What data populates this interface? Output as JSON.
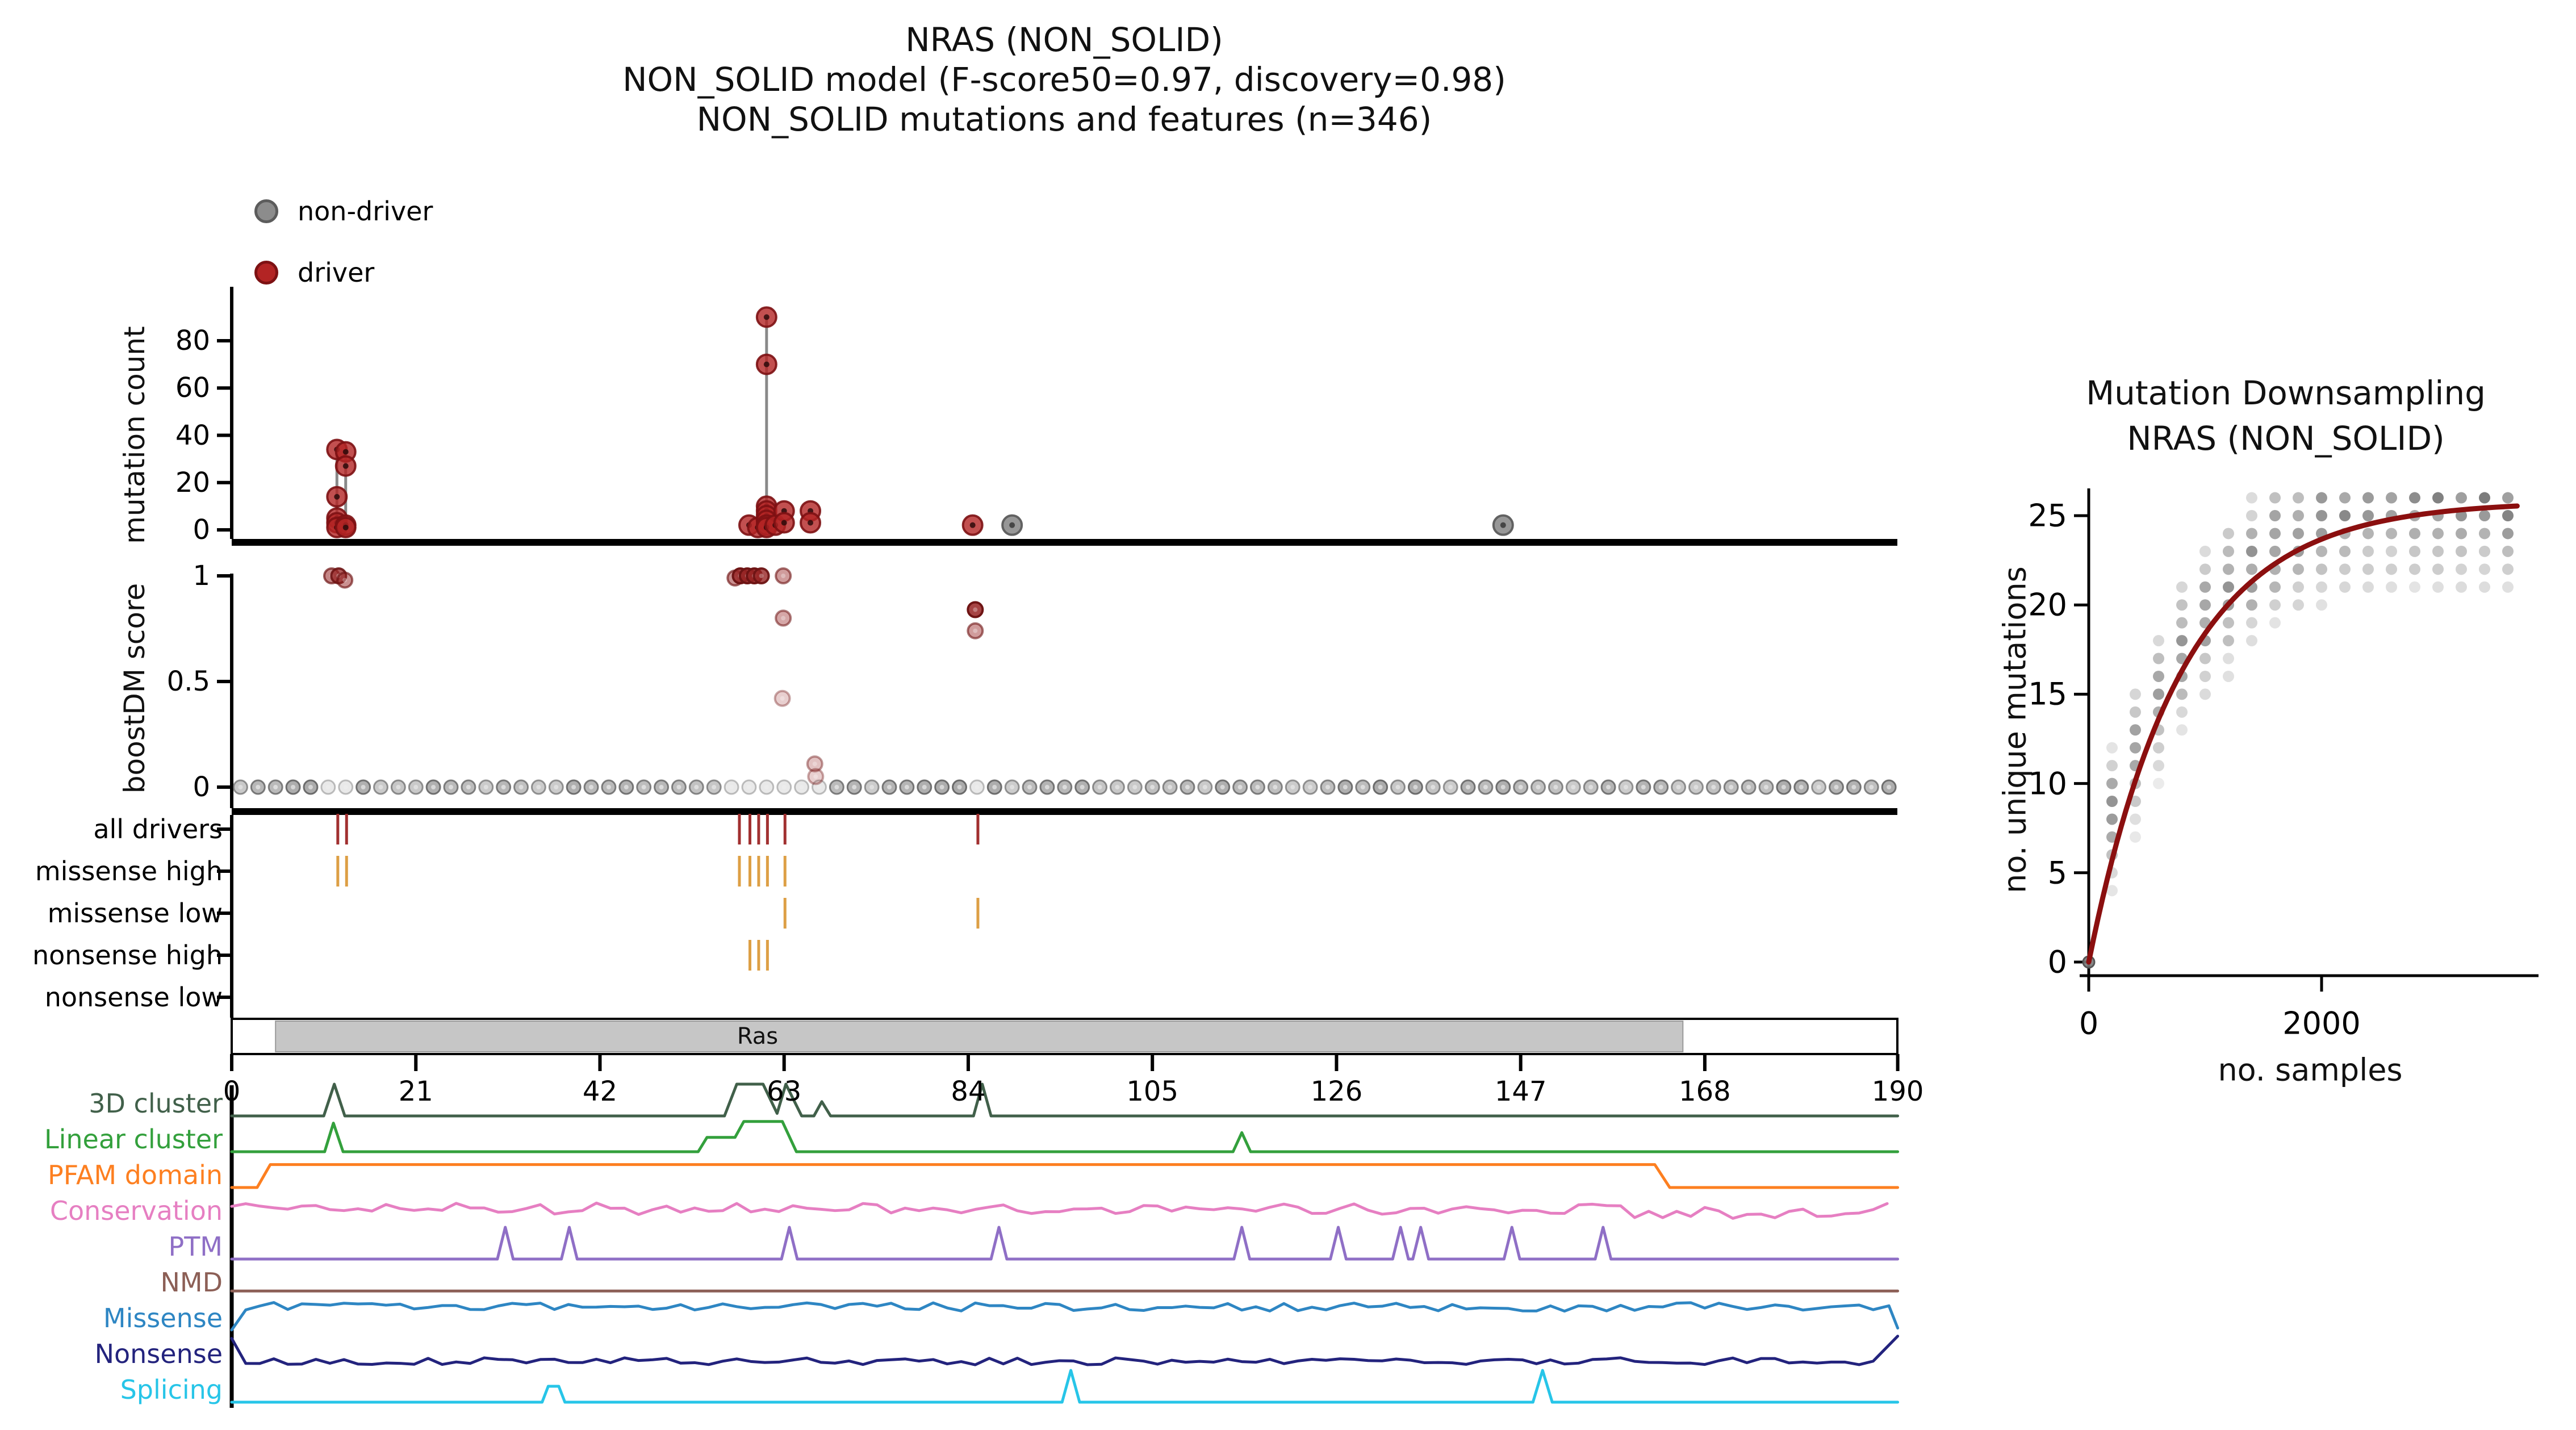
{
  "title": {
    "line1": "NRAS (NON_SOLID)",
    "line2": "NON_SOLID model (F-score50=0.97, discovery=0.98)",
    "line3": "NON_SOLID mutations and features (n=346)"
  },
  "legend": {
    "items": [
      {
        "label": "non-driver",
        "color": "#8c8c8c",
        "edge": "#5c5c5c"
      },
      {
        "label": "driver",
        "color": "#b32424",
        "edge": "#7d1113"
      }
    ]
  },
  "chart_data": {
    "needle_plot": {
      "type": "scatter",
      "ylabel": "mutation count",
      "yticks": [
        0,
        20,
        40,
        60,
        80
      ],
      "ylim": [
        0,
        95
      ],
      "xlim": [
        0,
        190
      ],
      "driver_color": "#b32424",
      "non_driver_color": "#8c8c8c",
      "stems": [
        [
          12,
          34
        ],
        [
          13,
          33
        ],
        [
          61,
          90
        ]
      ],
      "driver_points": [
        [
          12,
          34
        ],
        [
          12,
          14
        ],
        [
          12,
          5
        ],
        [
          12,
          3
        ],
        [
          12,
          1
        ],
        [
          13,
          33
        ],
        [
          13,
          27
        ],
        [
          13,
          2
        ],
        [
          13,
          1
        ],
        [
          59,
          2
        ],
        [
          60,
          1
        ],
        [
          61,
          90
        ],
        [
          61,
          70
        ],
        [
          61,
          10
        ],
        [
          61,
          8
        ],
        [
          61,
          6
        ],
        [
          61,
          4
        ],
        [
          61,
          2
        ],
        [
          61,
          1
        ],
        [
          62,
          2
        ],
        [
          63,
          8
        ],
        [
          63,
          3
        ],
        [
          66,
          8
        ],
        [
          66,
          3
        ],
        [
          84.5,
          2
        ]
      ],
      "non_driver_points": [
        [
          89,
          2
        ],
        [
          145,
          2
        ]
      ]
    },
    "boostdm_panel": {
      "ylabel": "boostDM score",
      "yticks": [
        0,
        0.5,
        1
      ],
      "driver_points": [
        [
          11.4,
          1.0,
          0.55
        ],
        [
          12.2,
          1.0,
          0.75
        ],
        [
          12.9,
          0.98,
          0.5
        ],
        [
          57.4,
          0.99,
          0.5
        ],
        [
          58.0,
          1.0,
          0.85
        ],
        [
          58.8,
          1.0,
          0.9
        ],
        [
          59.6,
          1.0,
          0.9
        ],
        [
          60.4,
          1.0,
          0.8
        ],
        [
          62.9,
          1.0,
          0.45
        ],
        [
          62.9,
          0.8,
          0.4
        ],
        [
          62.8,
          0.42,
          0.22
        ],
        [
          66.5,
          0.11,
          0.28
        ],
        [
          66.6,
          0.05,
          0.22
        ],
        [
          84.8,
          0.84,
          0.85
        ],
        [
          84.8,
          0.74,
          0.45
        ]
      ],
      "zero_row": {
        "start": 1,
        "end": 190,
        "step": 2,
        "base_alpha": 0.5,
        "light_ranges": [
          [
            11,
            13.5
          ],
          [
            57,
            61.5
          ],
          [
            63,
            67
          ],
          [
            84,
            86.5
          ]
        ],
        "light_alpha": 0.16
      }
    },
    "classification_rows": {
      "rows": [
        {
          "label": "all drivers",
          "color": "#a13030",
          "ticks": [
            12.1,
            13.1,
            57.9,
            59.1,
            60.1,
            61.1,
            63.1,
            85.1
          ]
        },
        {
          "label": "missense high",
          "color": "#dd9f45",
          "ticks": [
            12.1,
            13.1,
            57.9,
            59.1,
            60.1,
            61.1,
            63.1
          ]
        },
        {
          "label": "missense low",
          "color": "#dd9f45",
          "ticks": [
            63.1,
            85.1
          ]
        },
        {
          "label": "nonsense high",
          "color": "#dd9f45",
          "ticks": [
            59.1,
            60.1,
            61.1
          ]
        },
        {
          "label": "nonsense low",
          "color": "#dd9f45",
          "ticks": []
        }
      ]
    },
    "domain_track": {
      "label": "Ras",
      "start": 5,
      "end": 165.5,
      "label_x": 60,
      "fill": "#c6c6c6",
      "xticks": [
        0,
        21,
        42,
        63,
        84,
        105,
        126,
        147,
        168,
        190
      ]
    },
    "feature_tracks": [
      {
        "label": "3D cluster",
        "color": "#41604a",
        "shape": "polyline",
        "points": [
          [
            0,
            0
          ],
          [
            10.5,
            0
          ],
          [
            11.7,
            1
          ],
          [
            12.9,
            0
          ],
          [
            56.2,
            0
          ],
          [
            57.6,
            1
          ],
          [
            60.6,
            1
          ],
          [
            62.2,
            0.08
          ],
          [
            63.2,
            1
          ],
          [
            65.0,
            0
          ],
          [
            66.4,
            0
          ],
          [
            67.3,
            0.45
          ],
          [
            68.3,
            0
          ],
          [
            84.6,
            0
          ],
          [
            85.6,
            1
          ],
          [
            86.6,
            0
          ],
          [
            190,
            0
          ]
        ]
      },
      {
        "label": "Linear cluster",
        "color": "#33a03c",
        "shape": "polyline",
        "points": [
          [
            0,
            0
          ],
          [
            10.6,
            0
          ],
          [
            11.6,
            0.9
          ],
          [
            12.7,
            0
          ],
          [
            53.2,
            0
          ],
          [
            54.2,
            0.45
          ],
          [
            57.4,
            0.45
          ],
          [
            58.4,
            0.95
          ],
          [
            62.8,
            0.95
          ],
          [
            64.4,
            0
          ],
          [
            114.2,
            0
          ],
          [
            115.2,
            0.6
          ],
          [
            116.2,
            0
          ],
          [
            190,
            0
          ]
        ]
      },
      {
        "label": "PFAM domain",
        "color": "#fd7f20",
        "shape": "polyline",
        "points": [
          [
            0,
            0
          ],
          [
            2.9,
            0
          ],
          [
            4.4,
            0.72
          ],
          [
            162.3,
            0.72
          ],
          [
            164.0,
            0
          ],
          [
            190,
            0
          ]
        ]
      },
      {
        "label": "Conservation",
        "color": "#e67fc2",
        "shape": "noise-mid"
      },
      {
        "label": "PTM",
        "color": "#8f6fc6",
        "shape": "spikes",
        "spikes": [
          31.2,
          38.5,
          63.6,
          87.5,
          115.2,
          126.2,
          133.3,
          135.6,
          146.0,
          156.4
        ],
        "spike_h": 1,
        "spike_w": 0.9
      },
      {
        "label": "NMD",
        "color": "#8c5f56",
        "shape": "flat",
        "level": 0.12
      },
      {
        "label": "Missense",
        "color": "#2e86c3",
        "shape": "noise-high"
      },
      {
        "label": "Nonsense",
        "color": "#23237d",
        "shape": "noise-low"
      },
      {
        "label": "Splicing",
        "color": "#27c5e8",
        "shape": "polyline",
        "points": [
          [
            0,
            0
          ],
          [
            35.4,
            0
          ],
          [
            36.1,
            0.5
          ],
          [
            37.3,
            0.5
          ],
          [
            38.0,
            0
          ],
          [
            94.7,
            0
          ],
          [
            95.7,
            1
          ],
          [
            96.7,
            0
          ],
          [
            148.4,
            0
          ],
          [
            149.5,
            1
          ],
          [
            150.6,
            0
          ],
          [
            190,
            0
          ]
        ]
      }
    ],
    "downsampling": {
      "type": "scatter",
      "title": "Mutation Downsampling",
      "subtitle": "NRAS (NON_SOLID)",
      "xlabel": "no. samples",
      "ylabel": "no. unique mutations",
      "xticks": [
        0,
        2000
      ],
      "yticks": [
        0,
        5,
        10,
        15,
        20,
        25
      ],
      "xlim": [
        0,
        3815
      ],
      "ylim": [
        0,
        26.8
      ],
      "curve": {
        "color": "#8b0f0f",
        "A": 25.8,
        "tau": 800,
        "x_max": 3700
      },
      "dots": {
        "x_step": 200,
        "n_columns": 18,
        "center_A": 28,
        "center_shift": 150,
        "center_tau": 1000,
        "band_below": 5,
        "band_above": 4,
        "y_cap": 26,
        "color": "#6e6e6e"
      },
      "origin_point": [
        0,
        0
      ]
    }
  }
}
